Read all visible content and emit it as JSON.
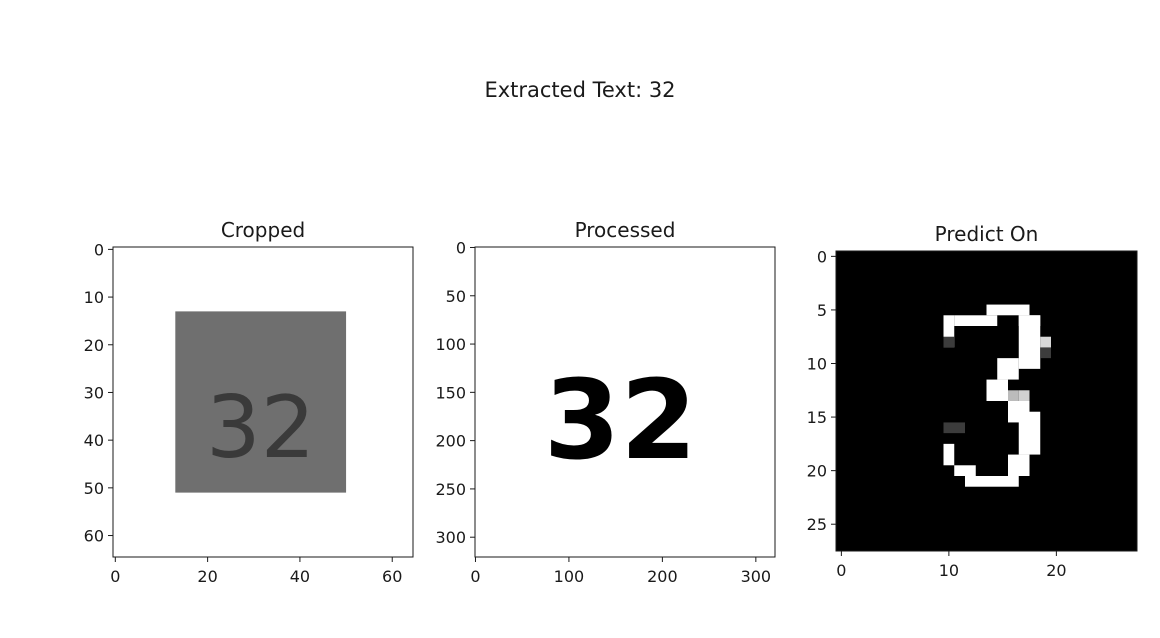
{
  "suptitle": "Extracted Text: 32",
  "chart_data": [
    {
      "type": "image",
      "title": "Cropped",
      "xlim": [
        -0.5,
        64.5
      ],
      "ylim": [
        64.5,
        -0.5
      ],
      "xticks": [
        0,
        20,
        40,
        60
      ],
      "yticks": [
        0,
        10,
        20,
        30,
        40,
        50,
        60
      ],
      "content": {
        "background": "#ffffff",
        "patch": {
          "x": [
            13,
            50
          ],
          "y": [
            13,
            51
          ],
          "color": "#6f6f6f"
        },
        "text": "32",
        "text_color": "#3a3a3a"
      }
    },
    {
      "type": "image",
      "title": "Processed",
      "xlim": [
        -0.5,
        320.5
      ],
      "ylim": [
        320.5,
        -0.5
      ],
      "xticks": [
        0,
        100,
        200,
        300
      ],
      "yticks": [
        0,
        50,
        100,
        150,
        200,
        250,
        300
      ],
      "content": {
        "background": "#ffffff",
        "text": "32",
        "text_color": "#000000"
      }
    },
    {
      "type": "image",
      "title": "Predict On",
      "xlim": [
        -0.5,
        27.5
      ],
      "ylim": [
        27.5,
        -0.5
      ],
      "xticks": [
        0,
        10,
        20
      ],
      "yticks": [
        0,
        5,
        10,
        15,
        20,
        25
      ],
      "content": {
        "background": "#000000",
        "text": "3",
        "text_color": "#ffffff"
      }
    }
  ]
}
